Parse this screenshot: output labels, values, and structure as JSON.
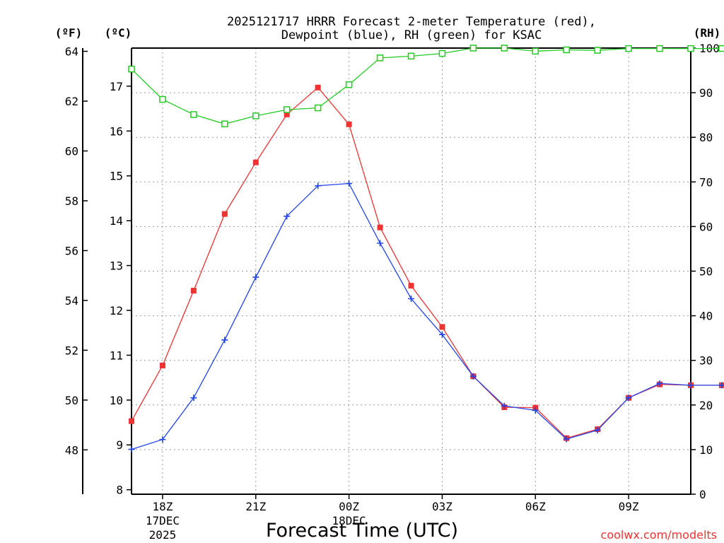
{
  "chart_data": {
    "type": "line",
    "title_line1": "2025121717 HRRR Forecast 2-meter Temperature (red),",
    "title_line2": "Dewpoint (blue), RH (green) for KSAC",
    "xlabel": "Forecast Time (UTC)",
    "credit": "coolwx.com/modelts",
    "unit_labels": {
      "fahrenheit": "(ºF)",
      "celsius": "(ºC)",
      "rh": "(RH)"
    },
    "x_hours": [
      17,
      18,
      19,
      20,
      21,
      22,
      23,
      24,
      25,
      26,
      27,
      28,
      29,
      30,
      31,
      32,
      33,
      34,
      35,
      36
    ],
    "x_range": [
      17,
      35.0
    ],
    "x_ticks": [
      {
        "hour": 18,
        "label": "18Z",
        "sub": [
          "17DEC",
          "2025"
        ]
      },
      {
        "hour": 21,
        "label": "21Z",
        "sub": []
      },
      {
        "hour": 24,
        "label": "00Z",
        "sub": [
          "18DEC"
        ]
      },
      {
        "hour": 27,
        "label": "03Z",
        "sub": []
      },
      {
        "hour": 30,
        "label": "06Z",
        "sub": []
      },
      {
        "hour": 33,
        "label": "09Z",
        "sub": []
      }
    ],
    "celsius_range": [
      7.9,
      17.85
    ],
    "celsius_ticks": [
      8,
      9,
      10,
      11,
      12,
      13,
      14,
      15,
      16,
      17
    ],
    "fahrenheit_ticks": [
      48,
      50,
      52,
      54,
      56,
      58,
      60,
      62,
      64
    ],
    "rh_range": [
      0,
      100
    ],
    "rh_ticks": [
      0,
      10,
      20,
      30,
      40,
      50,
      60,
      70,
      80,
      90,
      100
    ],
    "series": [
      {
        "name": "Temperature",
        "unit": "C",
        "color": "#ee3333",
        "marker": "filled-square",
        "values": [
          9.53,
          10.77,
          12.44,
          14.15,
          15.3,
          16.37,
          16.97,
          16.15,
          13.85,
          12.55,
          11.63,
          10.53,
          9.84,
          9.83,
          9.15,
          9.35,
          10.05,
          10.35,
          10.33,
          10.33
        ]
      },
      {
        "name": "Dewpoint",
        "unit": "C",
        "color": "#2244ee",
        "marker": "plus",
        "values": [
          8.9,
          9.12,
          10.05,
          11.34,
          12.74,
          14.1,
          14.78,
          14.83,
          13.5,
          12.26,
          11.46,
          10.53,
          9.87,
          9.77,
          9.13,
          9.33,
          10.05,
          10.37,
          10.33,
          10.33
        ]
      },
      {
        "name": "RH",
        "unit": "%",
        "color": "#22cc22",
        "marker": "open-square",
        "values": [
          95.3,
          88.5,
          85.1,
          83.0,
          84.8,
          86.2,
          86.6,
          91.8,
          97.8,
          98.2,
          98.8,
          100,
          100,
          99.3,
          99.6,
          99.5,
          99.9,
          99.9,
          99.9,
          99.9
        ]
      }
    ]
  }
}
